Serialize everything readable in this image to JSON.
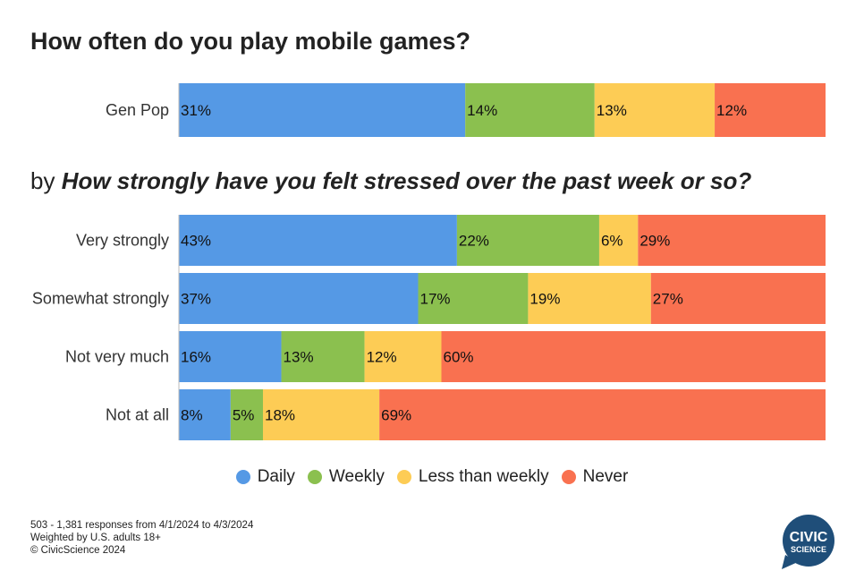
{
  "header": {
    "title": "How often do you play mobile games?",
    "subtitle_prefix": "by ",
    "subtitle_question": "How strongly have you felt stressed over the past week or so?"
  },
  "colors": {
    "Daily": "#5599e5",
    "Weekly": "#8bc04f",
    "Less than weekly": "#fdcc55",
    "Never": "#f97150"
  },
  "chart_data": {
    "type": "bar",
    "orientation": "horizontal",
    "stacked": true,
    "normalized": true,
    "title": "How often do you play mobile games?",
    "segments": [
      "Daily",
      "Weekly",
      "Less than weekly",
      "Never"
    ],
    "groups": [
      {
        "name": "",
        "rows": [
          {
            "label": "Gen Pop",
            "values": [
              31,
              14,
              13,
              12
            ]
          }
        ]
      },
      {
        "name": "How strongly have you felt stressed over the past week or so?",
        "rows": [
          {
            "label": "Very strongly",
            "values": [
              43,
              22,
              6,
              29
            ]
          },
          {
            "label": "Somewhat strongly",
            "values": [
              37,
              17,
              19,
              27
            ]
          },
          {
            "label": "Not very much",
            "values": [
              16,
              13,
              12,
              60
            ]
          },
          {
            "label": "Not at all",
            "values": [
              8,
              5,
              18,
              69
            ]
          }
        ]
      }
    ],
    "value_suffix": "%"
  },
  "legend": [
    {
      "label": "Daily",
      "color": "#5599e5"
    },
    {
      "label": "Weekly",
      "color": "#8bc04f"
    },
    {
      "label": "Less than weekly",
      "color": "#fdcc55"
    },
    {
      "label": "Never",
      "color": "#f97150"
    }
  ],
  "footer": {
    "line1": "503 - 1,381 responses from 4/1/2024 to 4/3/2024",
    "line2": "Weighted by U.S. adults 18+",
    "line3": "© CivicScience 2024"
  },
  "logo": {
    "line1": "CIVIC",
    "line2": "SCIENCE",
    "color": "#1f4e79"
  }
}
